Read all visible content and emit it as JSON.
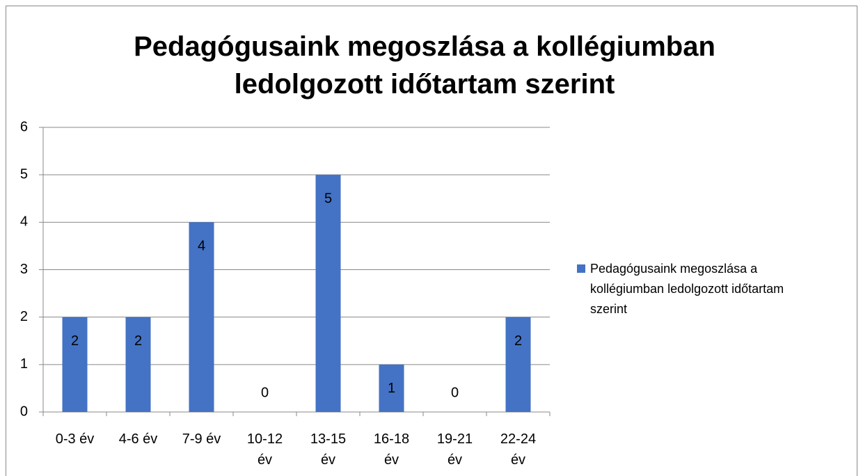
{
  "chart_data": {
    "type": "bar",
    "title": "Pedagógusaink megoszlása a kollégiumban ledolgozott időtartam szerint",
    "categories": [
      "0-3 év",
      "4-6 év",
      "7-9 év",
      "10-12 év",
      "13-15 év",
      "16-18 év",
      "19-21 év",
      "22-24 év"
    ],
    "series": [
      {
        "name": "Pedagógusaink megoszlása a kollégiumban ledolgozott időtartam szerint",
        "color": "#4472c4",
        "values": [
          2,
          2,
          4,
          0,
          5,
          1,
          0,
          2
        ]
      }
    ],
    "ylim": [
      0,
      6
    ],
    "yticks": [
      0,
      1,
      2,
      3,
      4,
      5,
      6
    ],
    "grid": true,
    "legend": "right"
  }
}
